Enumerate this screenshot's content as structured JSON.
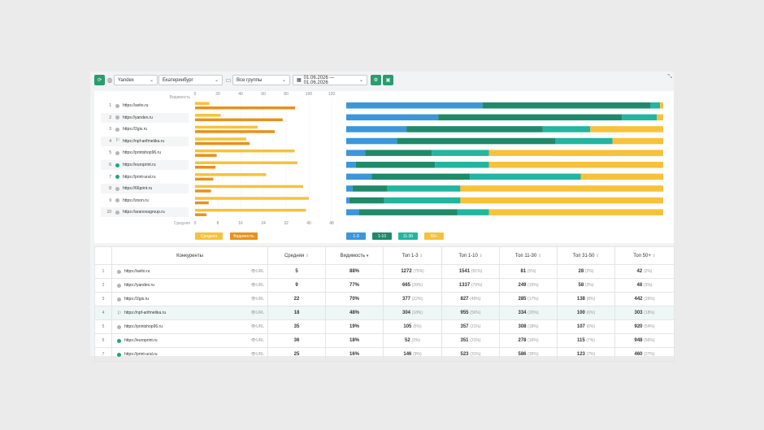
{
  "toolbar": {
    "engine": "Yandex",
    "region": "Екатеринбург",
    "groups": "Все группы",
    "date_range": "01.06.2026 — 01.06.2026"
  },
  "chart_data": [
    {
      "type": "bar",
      "title": "",
      "ylabel": "Видимость",
      "xlim": [
        0,
        120
      ],
      "x_ticks": [
        "0",
        "20",
        "40",
        "60",
        "80",
        "100",
        "120"
      ],
      "categories": [
        "https://avito.ru",
        "https://yandex.ru",
        "https://2gis.ru",
        "https://npf-arifmetika.ru",
        "https://printshop96.ru",
        "https://europrint.ru",
        "https://print-ural.ru",
        "https://66print.ru",
        "https://zoon.ru",
        "https://aranovagroup.ru"
      ],
      "values": [
        88,
        77,
        70,
        48,
        19,
        18,
        16,
        14,
        12,
        10
      ]
    },
    {
      "type": "bar",
      "title": "",
      "xlabel": "Средняя",
      "xlim": [
        0,
        48
      ],
      "x_ticks": [
        "0",
        "8",
        "16",
        "24",
        "32",
        "40",
        "48"
      ],
      "categories": [
        "https://avito.ru",
        "https://yandex.ru",
        "https://2gis.ru",
        "https://npf-arifmetika.ru",
        "https://printshop96.ru",
        "https://europrint.ru",
        "https://print-ural.ru",
        "https://66print.ru",
        "https://zoon.ru",
        "https://aranovagroup.ru"
      ],
      "values": [
        5,
        9,
        22,
        18,
        35,
        36,
        25,
        38,
        40,
        39
      ]
    },
    {
      "type": "bar",
      "stacked": true,
      "categories": [
        "https://avito.ru",
        "https://yandex.ru",
        "https://2gis.ru",
        "https://npf-arifmetika.ru",
        "https://printshop96.ru",
        "https://europrint.ru",
        "https://print-ural.ru",
        "https://66print.ru",
        "https://zoon.ru",
        "https://aranovagroup.ru"
      ],
      "series": [
        {
          "name": "1-3",
          "color": "#3b97d9",
          "values": [
            43,
            29,
            19,
            16,
            6,
            3,
            8,
            2,
            1,
            4
          ]
        },
        {
          "name": "1-10",
          "color": "#1f8a6a",
          "values": [
            53,
            58,
            43,
            50,
            21,
            25,
            31,
            11,
            11,
            31
          ]
        },
        {
          "name": "11-30",
          "color": "#22b5a0",
          "values": [
            3,
            11,
            15,
            18,
            18,
            17,
            35,
            23,
            24,
            10
          ]
        },
        {
          "name": "50+",
          "color": "#f7c23a",
          "values": [
            1,
            2,
            23,
            16,
            55,
            55,
            26,
            64,
            64,
            55
          ]
        }
      ]
    }
  ],
  "legend": {
    "avg": "Средняя",
    "vis": "Видимость",
    "stack": [
      "1-3",
      "1-10",
      "11-30",
      "50+"
    ]
  },
  "table": {
    "headers": {
      "competitors": "Конкуренты",
      "avg": "Средняя",
      "visibility": "Видимость",
      "top3": "Топ 1-3",
      "top10": "Топ 1-10",
      "top30": "Топ 11-30",
      "top50": "Топ 31-50",
      "top50plus": "Топ 50+"
    },
    "url_label": "URL",
    "rows": [
      {
        "i": "1",
        "site": "https://avito.ru",
        "mark": "dot",
        "avg": "5",
        "vis": "88%",
        "t3": "1272",
        "t3p": "(75%)",
        "t10": "1541",
        "t10p": "(91%)",
        "t30": "81",
        "t30p": "(5%)",
        "t50": "28",
        "t50p": "(2%)",
        "t50p2": "42",
        "t50pp": "(2%)"
      },
      {
        "i": "2",
        "site": "https://yandex.ru",
        "mark": "dot",
        "avg": "9",
        "vis": "77%",
        "t3": "665",
        "t3p": "(39%)",
        "t10": "1337",
        "t10p": "(79%)",
        "t30": "249",
        "t30p": "(15%)",
        "t50": "58",
        "t50p": "(3%)",
        "t50p2": "48",
        "t50pp": "(3%)"
      },
      {
        "i": "3",
        "site": "https://2gis.ru",
        "mark": "dot",
        "avg": "22",
        "vis": "70%",
        "t3": "377",
        "t3p": "(22%)",
        "t10": "827",
        "t10p": "(49%)",
        "t30": "285",
        "t30p": "(17%)",
        "t50": "138",
        "t50p": "(8%)",
        "t50p2": "442",
        "t50pp": "(26%)"
      },
      {
        "i": "4",
        "site": "https://npf-arifmetika.ru",
        "mark": "flag",
        "avg": "18",
        "vis": "48%",
        "t3": "304",
        "t3p": "(18%)",
        "t10": "955",
        "t10p": "(56%)",
        "t30": "334",
        "t30p": "(20%)",
        "t50": "100",
        "t50p": "(6%)",
        "t50p2": "303",
        "t50pp": "(18%)"
      },
      {
        "i": "5",
        "site": "https://printshop96.ru",
        "mark": "dot",
        "avg": "35",
        "vis": "19%",
        "t3": "105",
        "t3p": "(6%)",
        "t10": "357",
        "t10p": "(21%)",
        "t30": "308",
        "t30p": "(18%)",
        "t50": "107",
        "t50p": "(6%)",
        "t50p2": "920",
        "t50pp": "(54%)"
      },
      {
        "i": "6",
        "site": "https://europrint.ru",
        "mark": "green",
        "avg": "36",
        "vis": "18%",
        "t3": "52",
        "t3p": "(3%)",
        "t10": "351",
        "t10p": "(21%)",
        "t30": "278",
        "t30p": "(16%)",
        "t50": "115",
        "t50p": "(7%)",
        "t50p2": "948",
        "t50pp": "(56%)"
      },
      {
        "i": "7",
        "site": "https://print-ural.ru",
        "mark": "green",
        "avg": "25",
        "vis": "16%",
        "t3": "146",
        "t3p": "(9%)",
        "t10": "523",
        "t10p": "(31%)",
        "t30": "586",
        "t30p": "(35%)",
        "t50": "123",
        "t50p": "(7%)",
        "t50p2": "460",
        "t50pp": "(27%)"
      }
    ]
  }
}
